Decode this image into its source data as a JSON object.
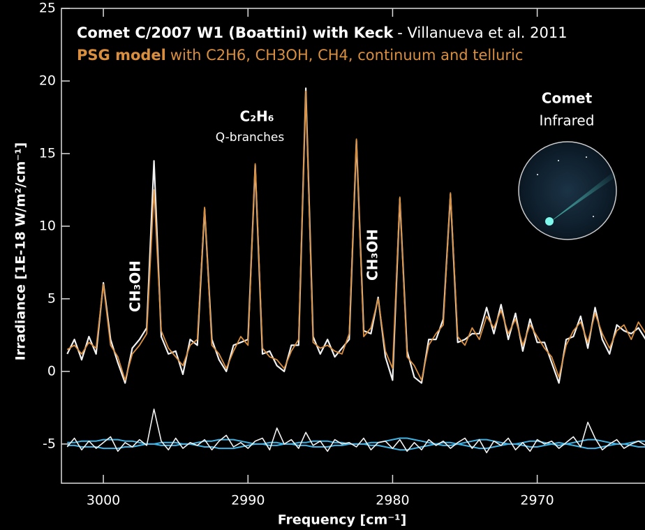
{
  "chart_data": {
    "type": "line",
    "title": {
      "main": "Comet C/2007 W1 (Boattini) with Keck",
      "credit": "- Villanueva et al. 2011"
    },
    "subtitle": {
      "model": "PSG model",
      "detail": "with C2H6, CH3OH, CH4, continuum and telluric"
    },
    "xlabel": "Frequency [cm⁻¹]",
    "ylabel": "Irradiance [1E-18 W/m²/cm⁻¹]",
    "annotations": [
      "C₂H₆",
      "Q-branches",
      "CH₃OH",
      "CH₃OH",
      "Comet",
      "Infrared"
    ],
    "xlim": [
      3002.9,
      2962.5
    ],
    "xticks": [
      3000,
      2990,
      2980,
      2970
    ],
    "ylim": [
      -7.7,
      25
    ],
    "yticks": [
      -5,
      0,
      5,
      10,
      15,
      20,
      25
    ],
    "x": [
      3002.5,
      3002,
      3001.5,
      3001,
      3000.5,
      3000,
      2999.5,
      2999,
      2998.5,
      2998,
      2997.5,
      2997,
      2996.5,
      2996,
      2995.5,
      2995,
      2994.5,
      2994,
      2993.5,
      2993,
      2992.5,
      2992,
      2991.5,
      2991,
      2990.5,
      2990,
      2989.5,
      2989,
      2988.5,
      2988,
      2987.5,
      2987,
      2986.5,
      2986,
      2985.5,
      2985,
      2984.5,
      2984,
      2983.5,
      2983,
      2982.5,
      2982,
      2981.5,
      2981,
      2980.5,
      2980,
      2979.5,
      2979,
      2978.5,
      2978,
      2977.5,
      2977,
      2976.5,
      2976,
      2975.5,
      2975,
      2974.5,
      2974,
      2973.5,
      2973,
      2972.5,
      2972,
      2971.5,
      2971,
      2970.5,
      2970,
      2969.5,
      2969,
      2968.5,
      2968,
      2967.5,
      2967,
      2966.5,
      2966,
      2965.5,
      2965,
      2964.5,
      2964,
      2963.5,
      2963,
      2962.5
    ],
    "series": [
      {
        "color": "#f2f2f2",
        "values": [
          1.2,
          2.2,
          0.8,
          2.4,
          1.2,
          6.1,
          2.2,
          0.6,
          -0.8,
          1.6,
          2.2,
          3.0,
          14.5,
          2.4,
          1.2,
          1.4,
          -0.2,
          2.2,
          1.8,
          11.2,
          2.2,
          0.8,
          0.0,
          1.8,
          2.0,
          2.2,
          14.2,
          1.2,
          1.4,
          0.4,
          0.0,
          1.8,
          1.8,
          19.5,
          2.4,
          1.2,
          2.2,
          1.0,
          1.6,
          2.2,
          15.9,
          2.8,
          2.6,
          5.1,
          1.0,
          -0.6,
          11.9,
          1.4,
          -0.4,
          -0.8,
          2.2,
          2.2,
          3.6,
          12.2,
          2.0,
          2.2,
          2.6,
          2.6,
          4.4,
          2.6,
          4.6,
          2.2,
          4.0,
          1.4,
          3.6,
          2.0,
          2.0,
          0.6,
          -0.8,
          2.2,
          2.4,
          3.8,
          1.6,
          4.4,
          2.2,
          1.2,
          3.2,
          2.8,
          2.6,
          3.0,
          2.2
        ]
      },
      {
        "color": "#d98f3e",
        "values": [
          1.5,
          1.8,
          1.2,
          2.0,
          1.6,
          6.0,
          1.8,
          1.0,
          -0.6,
          1.2,
          1.8,
          2.6,
          12.5,
          2.8,
          1.6,
          1.0,
          0.4,
          1.8,
          2.2,
          11.3,
          1.8,
          1.2,
          0.2,
          1.4,
          2.4,
          1.8,
          14.3,
          1.6,
          1.0,
          0.8,
          0.2,
          1.4,
          2.2,
          19.3,
          2.0,
          1.6,
          1.8,
          1.4,
          1.2,
          2.6,
          16.0,
          2.4,
          3.0,
          5.0,
          1.4,
          0.2,
          12.0,
          1.0,
          0.4,
          -0.6,
          1.8,
          2.6,
          3.2,
          12.3,
          2.4,
          1.8,
          3.0,
          2.2,
          3.8,
          3.0,
          4.2,
          2.6,
          3.6,
          1.8,
          3.2,
          2.4,
          1.6,
          1.0,
          -0.4,
          1.8,
          2.8,
          3.4,
          2.0,
          4.0,
          2.6,
          1.6,
          2.8,
          3.2,
          2.2,
          3.4,
          2.6
        ]
      },
      {
        "color": "#3fb4e6",
        "values": [
          -4.9,
          -4.9,
          -4.8,
          -4.8,
          -4.8,
          -4.7,
          -4.7,
          -4.7,
          -4.8,
          -4.8,
          -4.9,
          -5.0,
          -5.0,
          -5.1,
          -5.1,
          -5.1,
          -5.0,
          -5.0,
          -4.9,
          -4.8,
          -4.8,
          -4.7,
          -4.7,
          -4.7,
          -4.8,
          -4.9,
          -5.0,
          -5.0,
          -5.1,
          -5.1,
          -5.0,
          -5.0,
          -4.9,
          -4.9,
          -4.8,
          -4.8,
          -4.8,
          -4.9,
          -4.9,
          -5.0,
          -5.0,
          -5.0,
          -4.9,
          -4.9,
          -4.8,
          -4.7,
          -4.6,
          -4.6,
          -4.7,
          -4.8,
          -4.9,
          -5.0,
          -5.1,
          -5.1,
          -5.0,
          -4.9,
          -4.8,
          -4.7,
          -4.7,
          -4.8,
          -4.9,
          -5.0,
          -5.0,
          -4.9,
          -4.8,
          -4.8,
          -4.9,
          -5.0,
          -5.1,
          -5.0,
          -4.9,
          -4.8,
          -4.7,
          -4.7,
          -4.8,
          -4.9,
          -5.0,
          -5.0,
          -4.9,
          -4.8,
          -4.8
        ]
      },
      {
        "color": "#3fb4e6",
        "values": [
          -5.1,
          -5.1,
          -5.2,
          -5.2,
          -5.2,
          -5.3,
          -5.3,
          -5.3,
          -5.2,
          -5.2,
          -5.1,
          -5.0,
          -5.0,
          -4.9,
          -4.9,
          -4.9,
          -5.0,
          -5.0,
          -5.1,
          -5.2,
          -5.2,
          -5.3,
          -5.3,
          -5.3,
          -5.2,
          -5.1,
          -5.0,
          -5.0,
          -4.9,
          -4.9,
          -5.0,
          -5.0,
          -5.1,
          -5.1,
          -5.2,
          -5.2,
          -5.2,
          -5.1,
          -5.1,
          -5.0,
          -5.0,
          -5.0,
          -5.1,
          -5.1,
          -5.2,
          -5.3,
          -5.4,
          -5.4,
          -5.3,
          -5.2,
          -5.1,
          -5.0,
          -4.9,
          -4.9,
          -5.0,
          -5.1,
          -5.2,
          -5.3,
          -5.3,
          -5.2,
          -5.1,
          -5.0,
          -5.0,
          -5.1,
          -5.2,
          -5.2,
          -5.1,
          -5.0,
          -4.9,
          -5.0,
          -5.1,
          -5.2,
          -5.3,
          -5.3,
          -5.2,
          -5.1,
          -5.0,
          -5.0,
          -5.1,
          -5.2,
          -5.2
        ]
      },
      {
        "color": "#f2f2f2",
        "values": [
          -5.2,
          -4.6,
          -5.4,
          -4.8,
          -5.3,
          -4.9,
          -4.5,
          -5.5,
          -4.9,
          -5.2,
          -4.7,
          -5.1,
          -2.6,
          -4.8,
          -5.4,
          -4.6,
          -5.3,
          -4.9,
          -5.1,
          -4.7,
          -5.4,
          -4.8,
          -4.4,
          -5.2,
          -4.9,
          -5.3,
          -4.8,
          -4.6,
          -5.4,
          -3.9,
          -5.0,
          -4.7,
          -5.3,
          -4.2,
          -5.1,
          -4.8,
          -5.5,
          -4.7,
          -5.0,
          -4.9,
          -5.2,
          -4.6,
          -5.4,
          -4.9,
          -4.8,
          -5.3,
          -4.7,
          -5.5,
          -4.9,
          -5.4,
          -4.7,
          -5.1,
          -4.8,
          -5.3,
          -4.9,
          -4.6,
          -5.3,
          -4.7,
          -5.6,
          -4.8,
          -5.1,
          -4.6,
          -5.4,
          -4.9,
          -5.5,
          -4.7,
          -5.0,
          -4.8,
          -5.3,
          -4.9,
          -4.5,
          -5.2,
          -3.5,
          -4.6,
          -5.4,
          -5.0,
          -4.7,
          -5.3,
          -5.0,
          -4.8,
          -5.1
        ]
      }
    ]
  }
}
